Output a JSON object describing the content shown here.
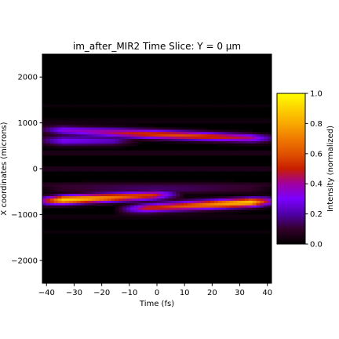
{
  "chart_data": {
    "type": "heatmap",
    "title": "im_after_MIR2 Time Slice: Y = 0 µm",
    "xlabel": "Time (fs)",
    "ylabel": "X coordinates (microns)",
    "xlim": [
      -41.5,
      41.5
    ],
    "ylim": [
      -2500,
      2500
    ],
    "xticks": [
      "−40",
      "−30",
      "−20",
      "−10",
      "0",
      "10",
      "20",
      "30",
      "40"
    ],
    "xtick_values": [
      -40,
      -30,
      -20,
      -10,
      0,
      10,
      20,
      30,
      40
    ],
    "yticks": [
      "2000",
      "1000",
      "0",
      "−1000",
      "−2000"
    ],
    "ytick_values": [
      2000,
      1000,
      0,
      -1000,
      -2000
    ],
    "colormap": "gnuplot",
    "colorbar": {
      "label": "Intensity (normalized)",
      "range": [
        0,
        1
      ],
      "ticks": [
        "0.0",
        "0.2",
        "0.4",
        "0.6",
        "0.8",
        "1.0"
      ],
      "tick_values": [
        0,
        0.2,
        0.4,
        0.6,
        0.8,
        1.0
      ]
    },
    "features": [
      {
        "name": "upper band",
        "x_start": -40,
        "x_end": 40,
        "y_start": 850,
        "y_end": 650,
        "peak_intensity": 0.55,
        "peak_x": 5
      },
      {
        "name": "upper band lower lobe",
        "x_start": -40,
        "x_end": -10,
        "y_start": 600,
        "y_end": 600,
        "peak_intensity": 0.3,
        "peak_x": -40
      },
      {
        "name": "lower band left",
        "x_start": -40,
        "x_end": 5,
        "y_start": -700,
        "y_end": -560,
        "peak_intensity": 0.85,
        "peak_x": -38
      },
      {
        "name": "lower band right",
        "x_start": -10,
        "x_end": 40,
        "y_start": -880,
        "y_end": -720,
        "peak_intensity": 0.85,
        "peak_x": 38
      },
      {
        "name": "faint fringe",
        "x_start": -40,
        "x_end": 40,
        "y_start": -450,
        "y_end": -450,
        "peak_intensity": 0.15,
        "peak_x": 0
      }
    ]
  }
}
